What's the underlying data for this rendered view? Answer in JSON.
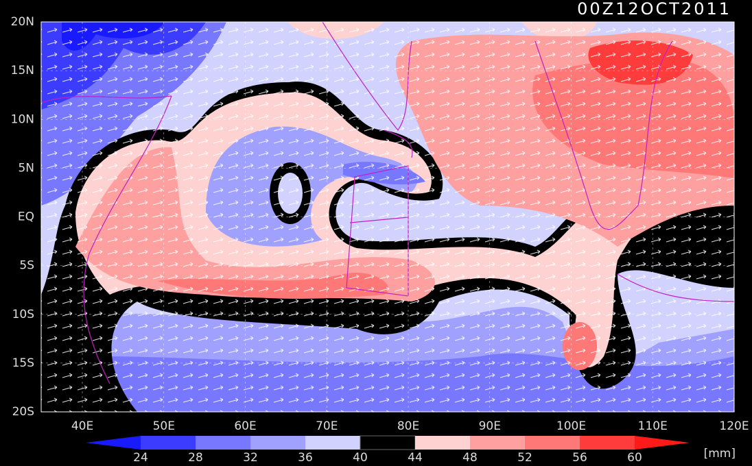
{
  "title": "00Z12OCT2011",
  "latitude_labels": [
    "20N",
    "15N",
    "10N",
    "5N",
    "EQ",
    "5S",
    "10S",
    "15S",
    "20S"
  ],
  "longitude_labels": [
    "40E",
    "50E",
    "60E",
    "70E",
    "80E",
    "90E",
    "100E",
    "110E",
    "120E"
  ],
  "colorbar": {
    "labels": [
      24,
      28,
      32,
      36,
      40,
      44,
      48,
      52,
      56,
      60
    ],
    "colors": [
      "#1a1aff",
      "#3c3cff",
      "#7878ff",
      "#a0a0ff",
      "#d2d2ff",
      "#000000",
      "#ffd2d2",
      "#ffa0a0",
      "#ff7878",
      "#ff3c3c",
      "#ff1a1a"
    ],
    "unit": "[mm]"
  }
}
